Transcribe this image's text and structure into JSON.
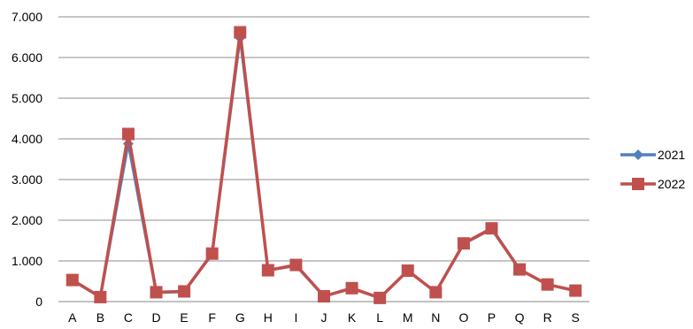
{
  "chart_data": {
    "type": "line",
    "categories": [
      "A",
      "B",
      "C",
      "D",
      "E",
      "F",
      "G",
      "H",
      "I",
      "J",
      "K",
      "L",
      "M",
      "N",
      "O",
      "P",
      "Q",
      "R",
      "S"
    ],
    "y_ticks": [
      0,
      1000,
      2000,
      3000,
      4000,
      5000,
      6000,
      7000
    ],
    "y_tick_labels": [
      "0",
      "1.000",
      "2.000",
      "3.000",
      "4.000",
      "5.000",
      "6.000",
      "7.000"
    ],
    "ylim": [
      0,
      7000
    ],
    "grid": "horizontal",
    "legend_position": "right",
    "title": "",
    "xlabel": "",
    "ylabel": "",
    "series": [
      {
        "name": "2021",
        "color": "#4F81BD",
        "marker": "diamond",
        "values": [
          520,
          110,
          3880,
          220,
          240,
          1170,
          6480,
          770,
          880,
          130,
          320,
          90,
          760,
          230,
          1420,
          1780,
          780,
          420,
          260
        ]
      },
      {
        "name": "2022",
        "color": "#C0504D",
        "marker": "square",
        "values": [
          530,
          110,
          4120,
          230,
          250,
          1180,
          6620,
          770,
          900,
          130,
          330,
          90,
          760,
          230,
          1430,
          1800,
          790,
          420,
          270
        ]
      }
    ]
  }
}
